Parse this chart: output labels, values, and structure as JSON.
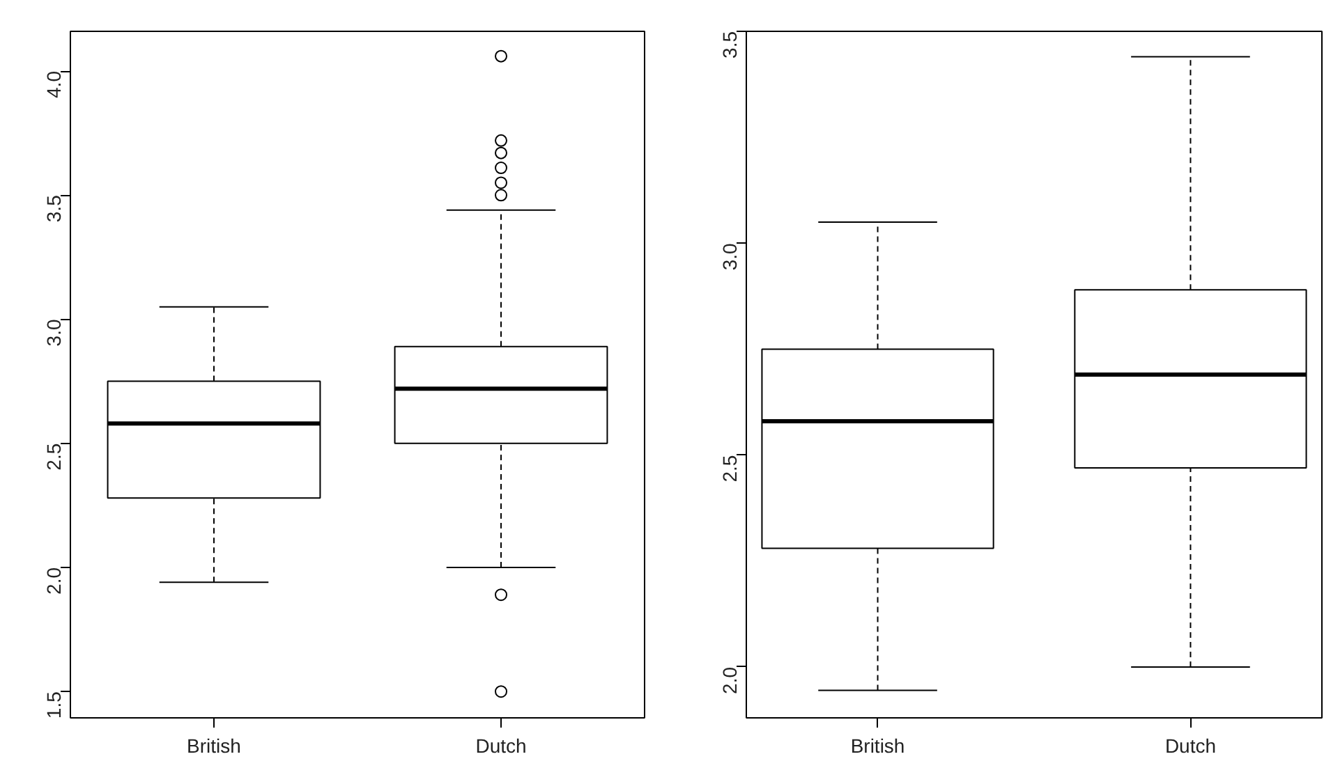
{
  "chart_data": [
    {
      "type": "box",
      "categories": [
        "British",
        "Dutch"
      ],
      "ylim": [
        1.394,
        4.16
      ],
      "yticks": [
        1.5,
        {
          "value": 2,
          "label": "2.0"
        },
        2.5,
        {
          "value": 3,
          "label": "3.0"
        },
        3.5,
        {
          "value": 4,
          "label": "4.0"
        }
      ],
      "grid": false,
      "boxes": [
        {
          "low": 1.94,
          "q1": 2.28,
          "median": 2.58,
          "q3": 2.75,
          "high": 3.05
        },
        {
          "low": 2.0,
          "q1": 2.5,
          "median": 2.72,
          "q3": 2.89,
          "high": 3.44,
          "outliers": [
            4.06,
            3.72,
            3.67,
            3.61,
            3.55,
            3.5,
            1.89,
            1.5
          ]
        }
      ]
    },
    {
      "type": "box",
      "categories": [
        "British",
        "Dutch"
      ],
      "ylim": [
        1.88,
        3.5
      ],
      "yticks": [
        {
          "value": 2,
          "label": "2.0"
        },
        2.5,
        {
          "value": 3,
          "label": "3.0"
        },
        3.5
      ],
      "grid": false,
      "boxes": [
        {
          "low": 1.945,
          "q1": 2.28,
          "median": 2.58,
          "q3": 2.75,
          "high": 3.05
        },
        {
          "low": 2.0,
          "q1": 2.47,
          "median": 2.69,
          "q3": 2.89,
          "high": 3.44
        }
      ]
    }
  ]
}
